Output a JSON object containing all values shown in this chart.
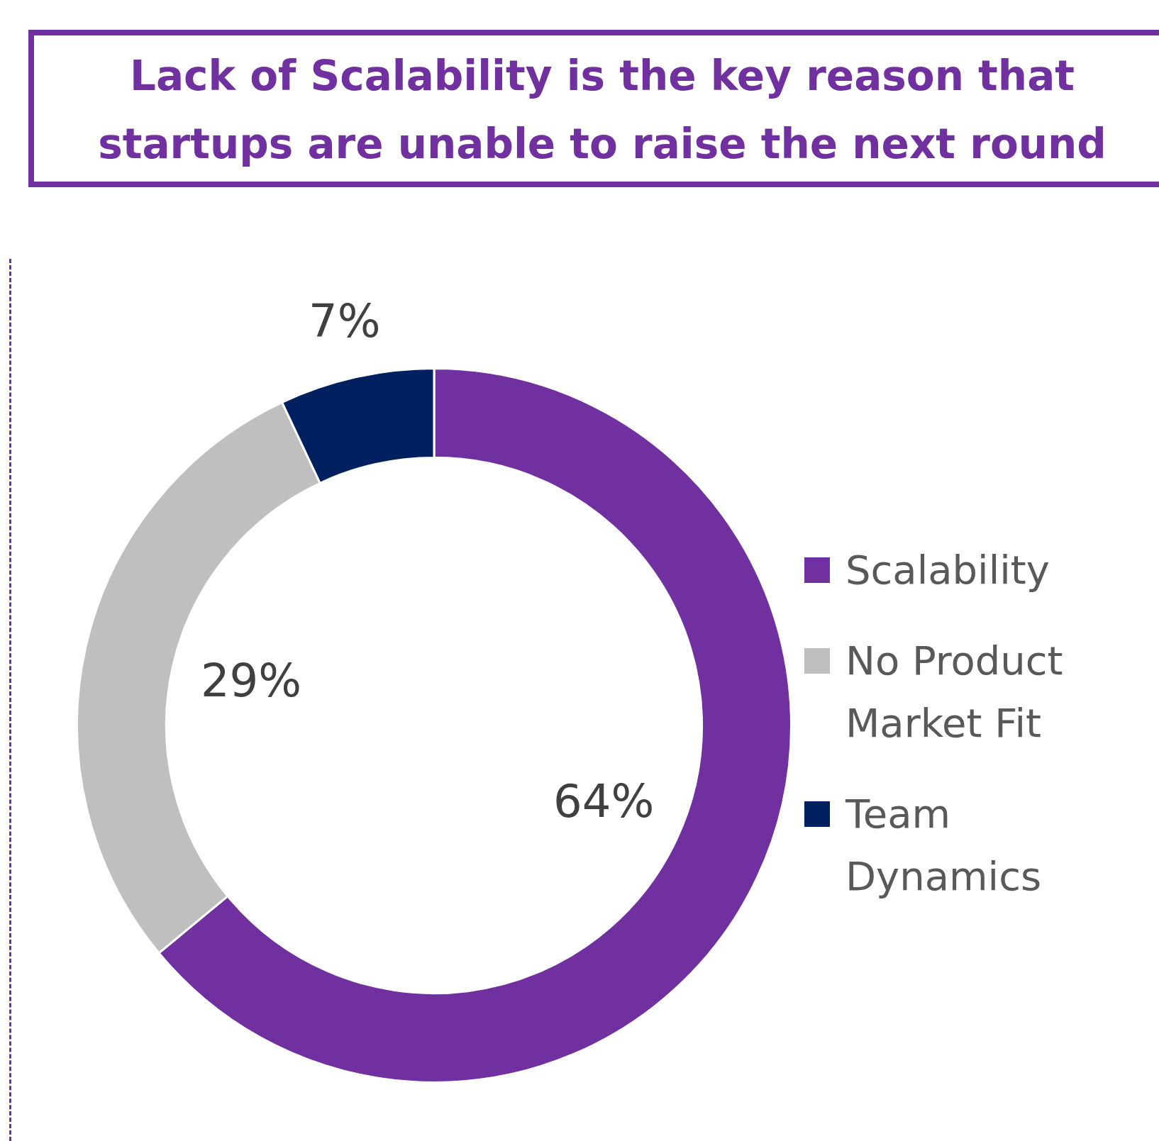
{
  "chart_data": {
    "type": "donut",
    "title": "Lack of Scalability is the key reason that startups are unable to raise the next round",
    "categories": [
      "Scalability",
      "No Product Market Fit",
      "Team Dynamics"
    ],
    "values": [
      64,
      29,
      7
    ],
    "colors": [
      "#7030a0",
      "#bfbfbf",
      "#002060"
    ],
    "value_labels": [
      "64%",
      "29%",
      "7%"
    ],
    "legend": "right"
  }
}
